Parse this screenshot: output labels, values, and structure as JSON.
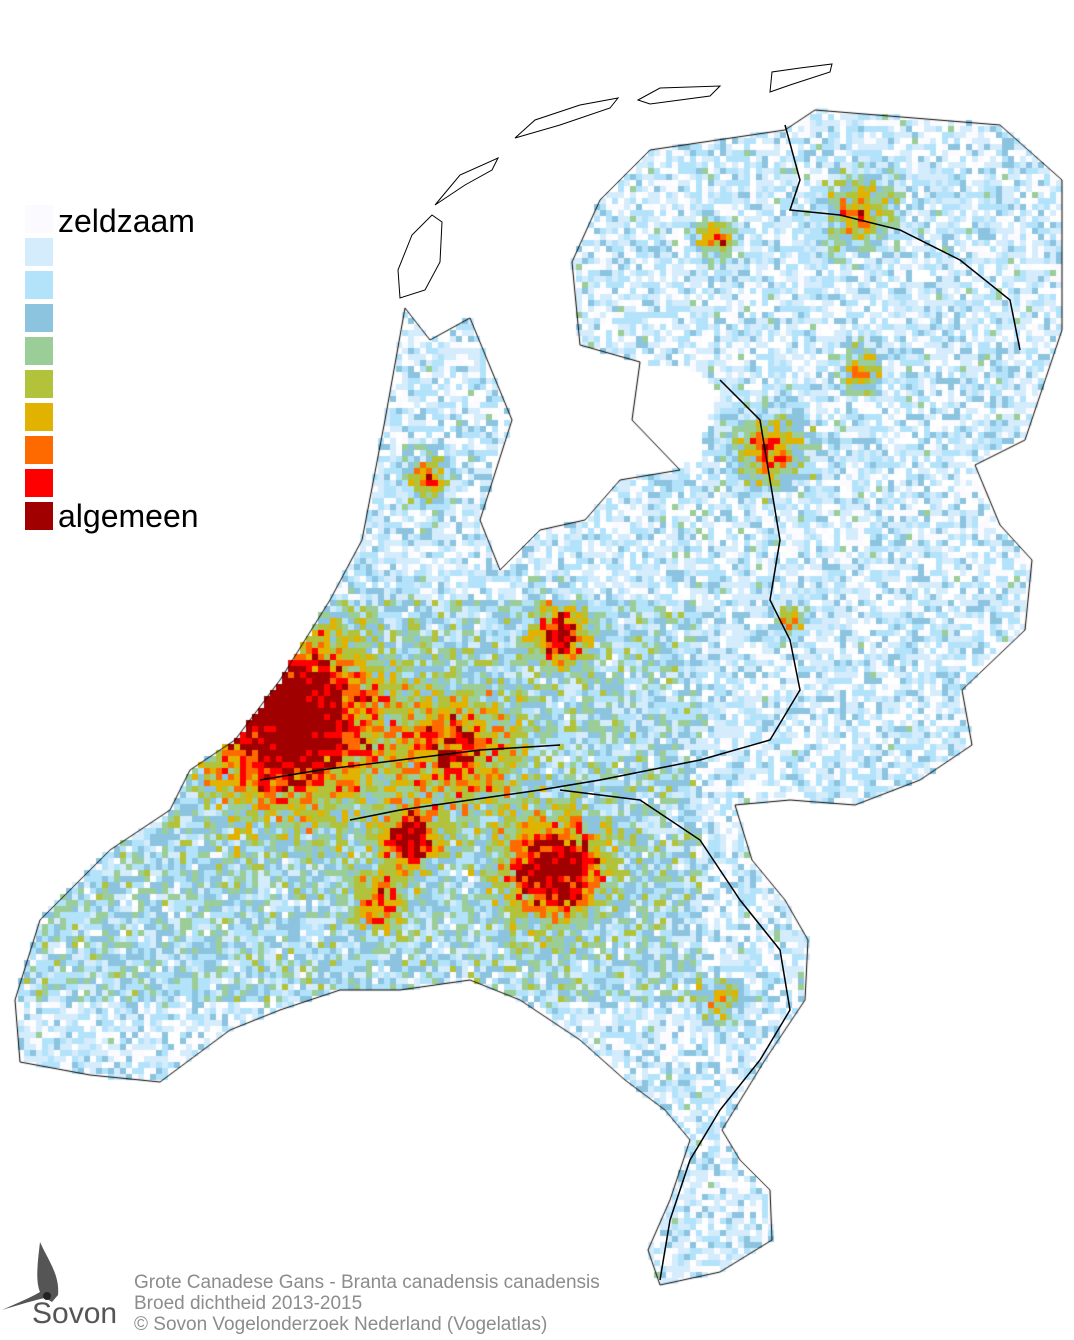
{
  "legend": {
    "top_label": "zeldzaam",
    "bottom_label": "algemeen",
    "colors": [
      "#fbfbff",
      "#d4ecfb",
      "#b3e3fb",
      "#8cc4e0",
      "#9bcd98",
      "#b2c23a",
      "#e1b200",
      "#ff6a00",
      "#ff0000",
      "#a00000"
    ]
  },
  "footer": {
    "species": "Grote Canadese Gans - Branta canadensis canadensis",
    "subtitle": "Broed dichtheid 2013-2015",
    "copyright": "© Sovon Vogelonderzoek Nederland (Vogelatlas)"
  },
  "logo": {
    "text": "Sovon"
  }
}
